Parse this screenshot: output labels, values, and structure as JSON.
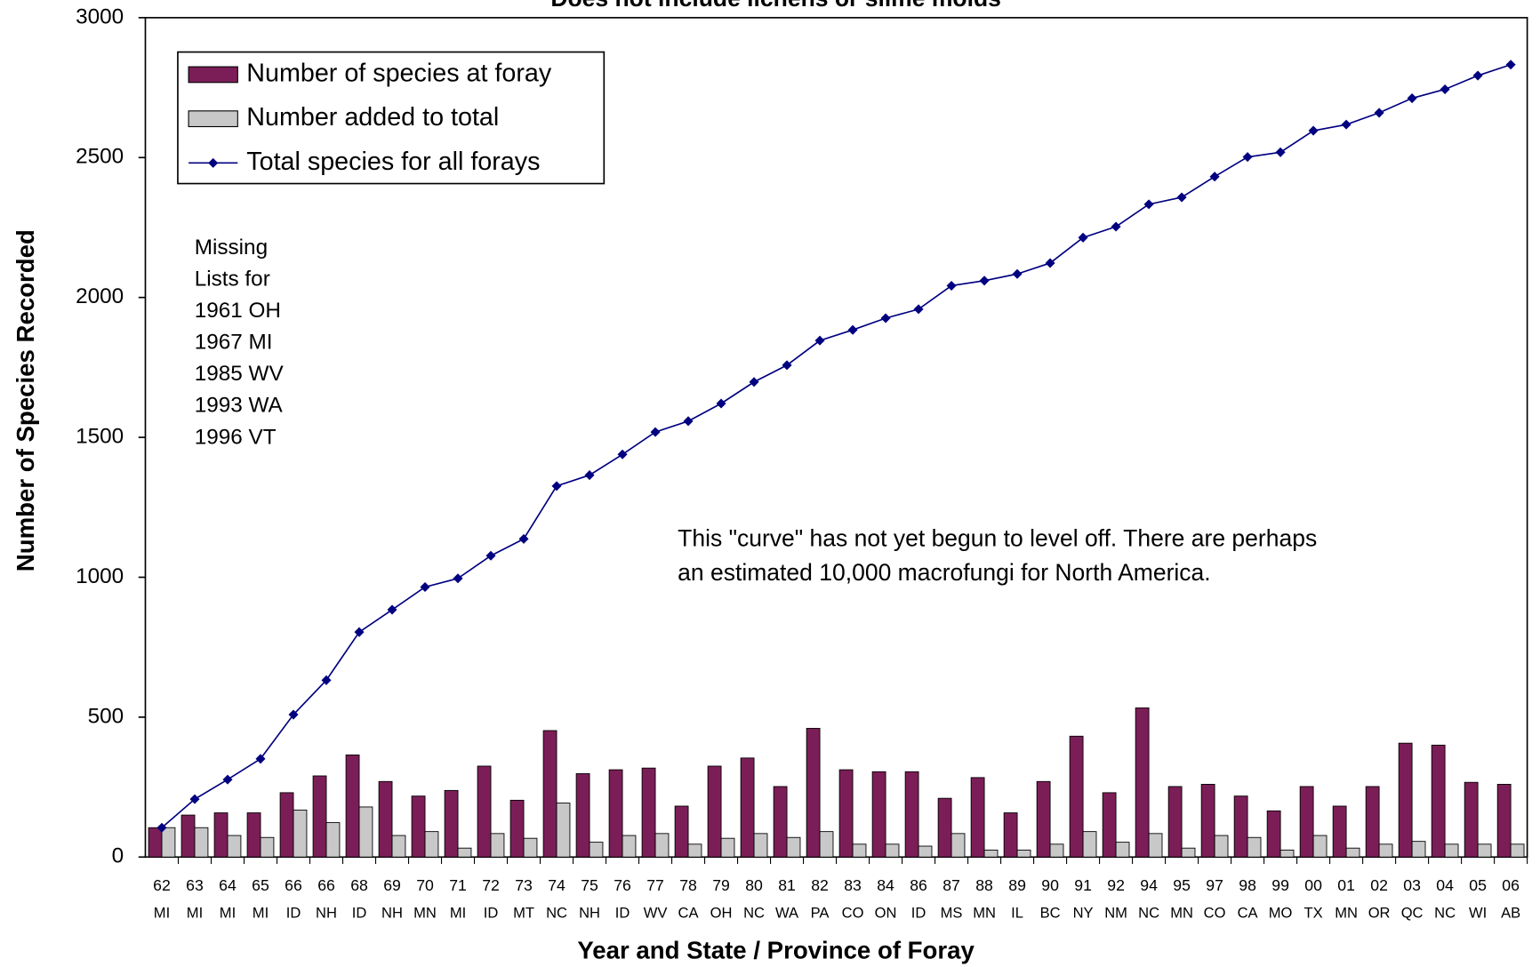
{
  "chart_data": {
    "type": "bar",
    "title": "Does not include lichens or slime molds",
    "x_label": "Year and State / Province of Foray",
    "y_label": "Number of Species Recorded",
    "categories": [
      [
        "62",
        "MI"
      ],
      [
        "63",
        "MI"
      ],
      [
        "64",
        "MI"
      ],
      [
        "65",
        "MI"
      ],
      [
        "66",
        "ID"
      ],
      [
        "66",
        "NH"
      ],
      [
        "68",
        "ID"
      ],
      [
        "69",
        "NH"
      ],
      [
        "70",
        "MN"
      ],
      [
        "71",
        "MI"
      ],
      [
        "72",
        "ID"
      ],
      [
        "73",
        "MT"
      ],
      [
        "74",
        "NC"
      ],
      [
        "75",
        "NH"
      ],
      [
        "76",
        "ID"
      ],
      [
        "77",
        "WV"
      ],
      [
        "78",
        "CA"
      ],
      [
        "79",
        "OH"
      ],
      [
        "80",
        "NC"
      ],
      [
        "81",
        "WA"
      ],
      [
        "82",
        "PA"
      ],
      [
        "83",
        "CO"
      ],
      [
        "84",
        "ON"
      ],
      [
        "86",
        "ID"
      ],
      [
        "87",
        "MS"
      ],
      [
        "88",
        "MN"
      ],
      [
        "89",
        "IL"
      ],
      [
        "90",
        "BC"
      ],
      [
        "91",
        "NY"
      ],
      [
        "92",
        "NM"
      ],
      [
        "94",
        "NC"
      ],
      [
        "95",
        "MN"
      ],
      [
        "97",
        "CO"
      ],
      [
        "98",
        "CA"
      ],
      [
        "99",
        "MO"
      ],
      [
        "00",
        "TX"
      ],
      [
        "01",
        "MN"
      ],
      [
        "02",
        "OR"
      ],
      [
        "03",
        "QC"
      ],
      [
        "04",
        "NC"
      ],
      [
        "05",
        "WI"
      ],
      [
        "06",
        "AB"
      ]
    ],
    "series": [
      {
        "name": "Number of species at foray",
        "type": "bar",
        "color": "#7b1e57",
        "values": [
          105,
          150,
          158,
          158,
          230,
          290,
          365,
          270,
          218,
          238,
          325,
          203,
          452,
          298,
          312,
          318,
          182,
          325,
          354,
          252,
          460,
          312,
          305,
          305,
          210,
          284,
          158,
          270,
          432,
          230,
          533,
          252,
          260,
          218,
          165,
          252,
          182,
          252,
          407,
          400,
          267,
          260
        ]
      },
      {
        "name": "Number added to total",
        "type": "bar",
        "color": "#c8c8c8",
        "values": [
          105,
          105,
          77,
          70,
          168,
          123,
          179,
          77,
          91,
          32,
          84,
          67,
          193,
          53,
          77,
          84,
          46,
          67,
          84,
          70,
          91,
          46,
          46,
          39,
          84,
          25,
          25,
          46,
          91,
          53,
          84,
          32,
          77,
          70,
          25,
          77,
          32,
          46,
          56,
          46,
          46,
          46
        ]
      },
      {
        "name": "Total species for all forays",
        "type": "line",
        "color": "#000080",
        "values": [
          105,
          207,
          277,
          351,
          509,
          632,
          804,
          884,
          965,
          996,
          1077,
          1137,
          1326,
          1365,
          1439,
          1519,
          1558,
          1621,
          1698,
          1758,
          1846,
          1884,
          1926,
          1958,
          2042,
          2060,
          2084,
          2123,
          2214,
          2253,
          2333,
          2358,
          2432,
          2502,
          2519,
          2596,
          2618,
          2660,
          2712,
          2744,
          2793,
          2832
        ]
      }
    ],
    "ylim": [
      0,
      3000
    ],
    "yticks": [
      0,
      500,
      1000,
      1500,
      2000,
      2500,
      3000
    ],
    "note_lines": [
      "Missing",
      "Lists for",
      "1961 OH",
      "1967 MI",
      "1985 WV",
      "1993 WA",
      "1996 VT"
    ],
    "annotation_lines": [
      "This \"curve\" has not yet begun to level off. There are perhaps",
      "an estimated 10,000 macrofungi for North America."
    ]
  }
}
